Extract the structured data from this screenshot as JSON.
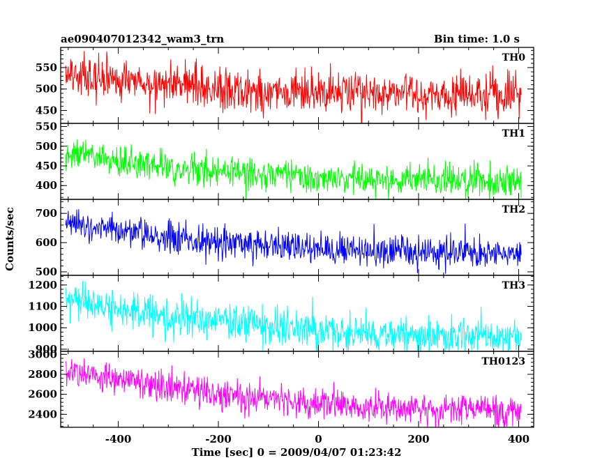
{
  "header": {
    "title": "ae090407012342_wam3_trn",
    "bin_time": "Bin time: 1.0 s"
  },
  "axes": {
    "xlabel": "Time [sec] 0 = 2009/04/07 01:23:42",
    "ylabel": "Counts/sec"
  },
  "chart_data": {
    "type": "line",
    "title": "ae090407012342_wam3_trn",
    "subtitle": "Bin time: 1.0 s",
    "xlabel": "Time [sec] 0 = 2009/04/07 01:23:42",
    "ylabel": "Counts/sec",
    "xlim": [
      -515,
      430
    ],
    "xticks": [
      -400,
      -200,
      0,
      200,
      400
    ],
    "x_range_data": [
      -505,
      405
    ],
    "bin_seconds": 1.0,
    "grid": false,
    "panels": [
      {
        "name": "TH0",
        "color": "#ff0000",
        "ylim": [
          420,
          597
        ],
        "yticks": [
          450,
          500,
          550
        ],
        "trend": {
          "x": [
            -505,
            -400,
            -300,
            -200,
            -100,
            0,
            100,
            200,
            300,
            405
          ],
          "y": [
            535,
            520,
            508,
            500,
            495,
            490,
            488,
            487,
            485,
            484
          ]
        },
        "noise_sigma": 25
      },
      {
        "name": "TH1",
        "color": "#00ff00",
        "ylim": [
          365,
          558
        ],
        "yticks": [
          400,
          450,
          500,
          550
        ],
        "trend": {
          "x": [
            -505,
            -400,
            -300,
            -200,
            -100,
            0,
            100,
            200,
            300,
            405
          ],
          "y": [
            482,
            465,
            447,
            435,
            428,
            420,
            416,
            414,
            413,
            412
          ]
        },
        "noise_sigma": 20
      },
      {
        "name": "TH2",
        "color": "#0000ff",
        "ylim": [
          488,
          748
        ],
        "yticks": [
          500,
          600,
          700
        ],
        "trend": {
          "x": [
            -505,
            -400,
            -300,
            -200,
            -100,
            0,
            100,
            200,
            300,
            405
          ],
          "y": [
            660,
            640,
            620,
            600,
            590,
            580,
            572,
            568,
            565,
            563
          ]
        },
        "noise_sigma": 28
      },
      {
        "name": "TH3",
        "color": "#00ffff",
        "ylim": [
          890,
          1245
        ],
        "yticks": [
          900,
          1000,
          1100,
          1200
        ],
        "trend": {
          "x": [
            -505,
            -400,
            -300,
            -200,
            -100,
            0,
            100,
            200,
            300,
            405
          ],
          "y": [
            1140,
            1090,
            1060,
            1035,
            1010,
            990,
            975,
            965,
            960,
            955
          ]
        },
        "noise_sigma": 42
      },
      {
        "name": "TH0123",
        "color": "#ff00ff",
        "ylim": [
          2270,
          3030
        ],
        "yticks": [
          2400,
          2600,
          2800,
          3000
        ],
        "trend": {
          "x": [
            -505,
            -400,
            -300,
            -200,
            -100,
            0,
            100,
            200,
            300,
            405
          ],
          "y": [
            2840,
            2760,
            2680,
            2600,
            2550,
            2500,
            2470,
            2460,
            2455,
            2450
          ]
        },
        "noise_sigma": 75
      }
    ]
  }
}
